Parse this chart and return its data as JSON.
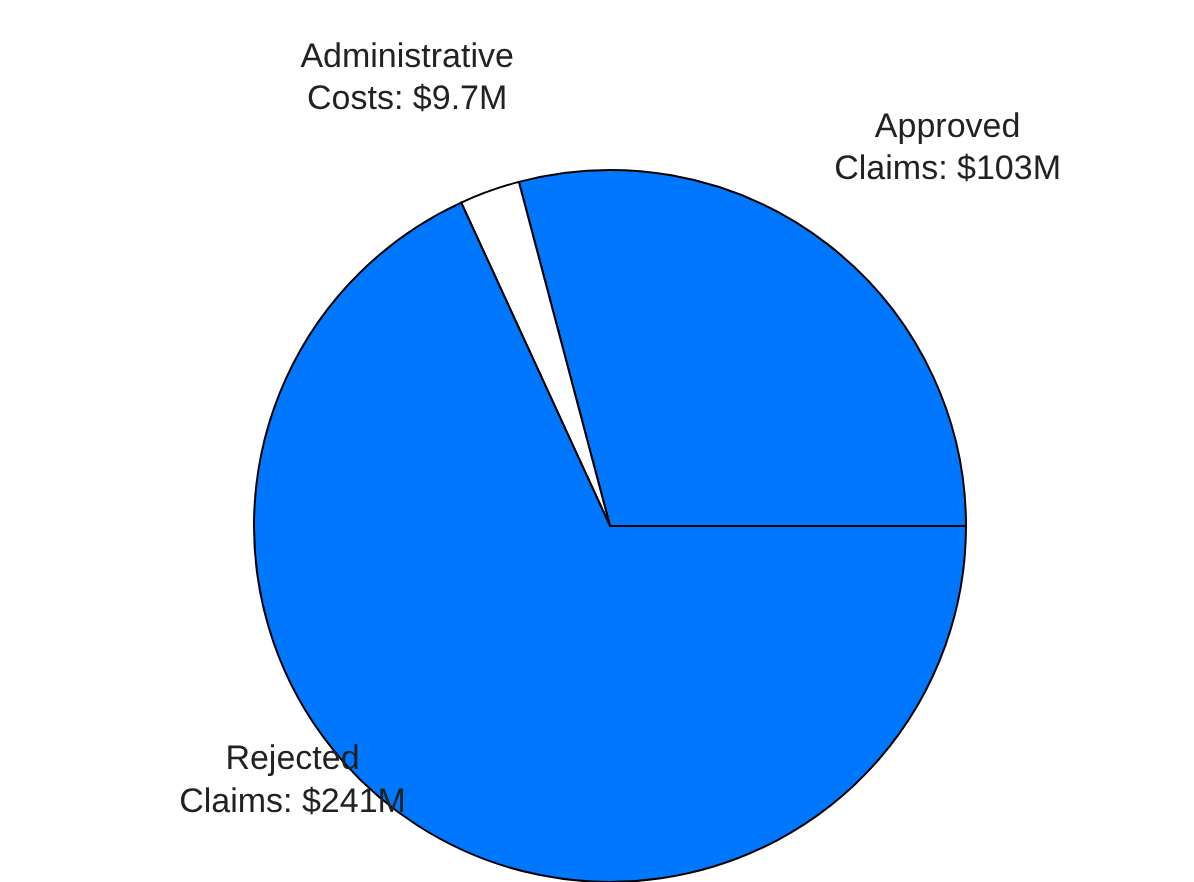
{
  "chart_data": {
    "type": "pie",
    "categories": [
      "Approved Claims",
      "Administrative Costs",
      "Rejected Claims"
    ],
    "values": [
      103,
      9.7,
      241
    ],
    "colors": [
      "#0077ff",
      "#ffffff",
      "#0077ff"
    ],
    "value_labels": [
      "$103M",
      "$9.7M",
      "$241M"
    ]
  }
}
